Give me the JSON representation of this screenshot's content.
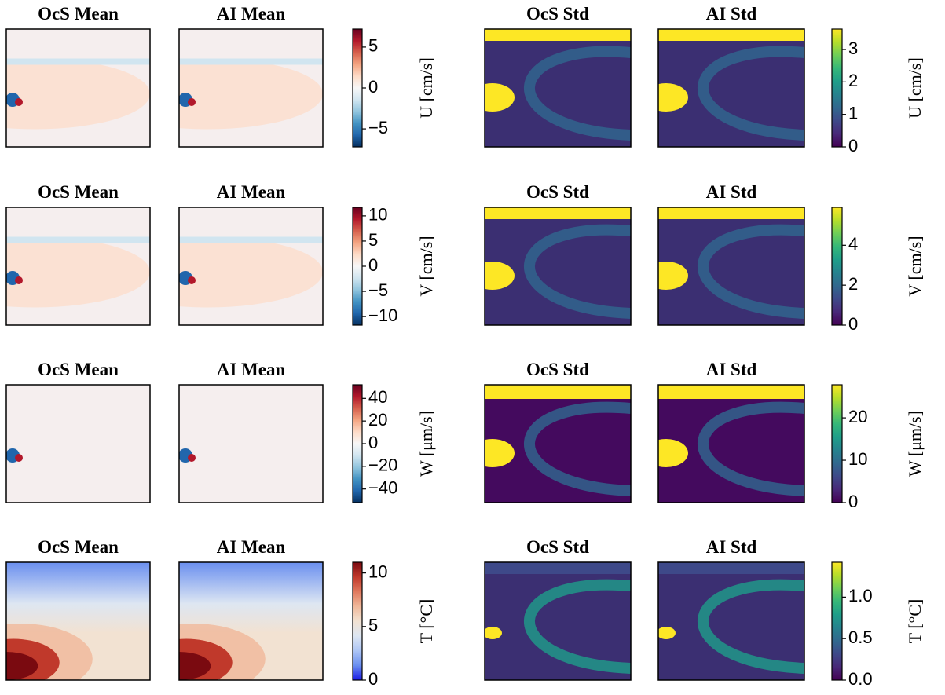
{
  "chart_data": [
    {
      "type": "heatmap",
      "panel_titles": [
        "OcS Mean",
        "AI Mean"
      ],
      "colormap": "RdBu_r",
      "colorbar_label": "U [cm/s]",
      "clim": [
        -7.2,
        7.2
      ],
      "cticks": [
        {
          "value": -5,
          "label": "−5"
        },
        0,
        5
      ]
    },
    {
      "type": "heatmap",
      "panel_titles": [
        "OcS Std",
        "AI Std"
      ],
      "colormap": "viridis",
      "colorbar_label": "U [cm/s]",
      "clim": [
        0,
        3.63
      ],
      "cticks": [
        0,
        1,
        2,
        3
      ]
    },
    {
      "type": "heatmap",
      "panel_titles": [
        "OcS Mean",
        "AI Mean"
      ],
      "colormap": "RdBu_r",
      "colorbar_label": "V [cm/s]",
      "clim": [
        -11.7,
        11.7
      ],
      "cticks": [
        {
          "value": -10,
          "label": "−10"
        },
        {
          "value": -5,
          "label": "−5"
        },
        0,
        5,
        10
      ]
    },
    {
      "type": "heatmap",
      "panel_titles": [
        "OcS Std",
        "AI Std"
      ],
      "colormap": "viridis",
      "colorbar_label": "V [cm/s]",
      "clim": [
        0,
        5.9
      ],
      "cticks": [
        0,
        2,
        4
      ]
    },
    {
      "type": "heatmap",
      "panel_titles": [
        "OcS Mean",
        "AI Mean"
      ],
      "colormap": "RdBu_r",
      "colorbar_label": "W [μm/s]",
      "clim": [
        -52,
        52
      ],
      "cticks": [
        {
          "value": -40,
          "label": "−40"
        },
        {
          "value": -20,
          "label": "−20"
        },
        0,
        20,
        40
      ]
    },
    {
      "type": "heatmap",
      "panel_titles": [
        "OcS Std",
        "AI Std"
      ],
      "colormap": "viridis",
      "colorbar_label": "W [μm/s]",
      "clim": [
        0,
        27.8
      ],
      "cticks": [
        0,
        10,
        20
      ]
    },
    {
      "type": "heatmap",
      "panel_titles": [
        "OcS Mean",
        "AI Mean"
      ],
      "colormap": "coolwarm",
      "colorbar_label": "T [°C]",
      "clim": [
        0,
        11
      ],
      "cticks": [
        0,
        5,
        10
      ]
    },
    {
      "type": "heatmap",
      "panel_titles": [
        "OcS Std",
        "AI Std"
      ],
      "colormap": "viridis",
      "colorbar_label": "T [°C]",
      "clim": [
        0,
        1.42
      ],
      "cticks": [
        {
          "value": 0,
          "label": "0.0"
        },
        {
          "value": 0.5,
          "label": "0.5"
        },
        {
          "value": 1,
          "label": "1.0"
        }
      ]
    }
  ]
}
